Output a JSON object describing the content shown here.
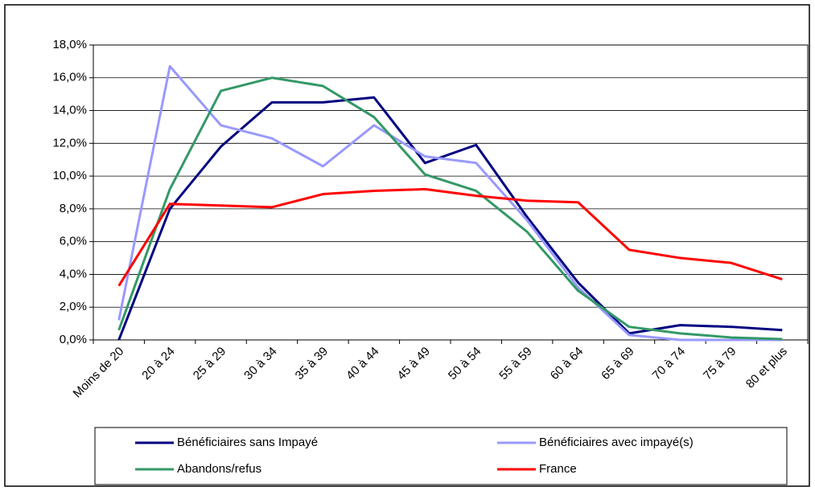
{
  "chart_data": {
    "type": "line",
    "categories": [
      "Moins de 20",
      "20 à 24",
      "25 à 29",
      "30 à 34",
      "35 à 39",
      "40 à 44",
      "45 à 49",
      "50 à 54",
      "55 à 59",
      "60 à 64",
      "65 à 69",
      "70 à 74",
      "75 à 79",
      "80 et plus"
    ],
    "series": [
      {
        "name": "Bénéficiaires sans Impayé",
        "color": "#000080",
        "values": [
          0.0,
          8.0,
          11.8,
          14.5,
          14.5,
          14.8,
          10.8,
          11.9,
          7.5,
          3.5,
          0.4,
          0.9,
          0.8,
          0.6
        ]
      },
      {
        "name": "Bénéficiaires avec impayé(s)",
        "color": "#9999ff",
        "values": [
          1.2,
          16.7,
          13.1,
          12.3,
          10.6,
          13.1,
          11.2,
          10.8,
          7.3,
          3.2,
          0.3,
          0.0,
          0.0,
          0.0
        ]
      },
      {
        "name": "Abandons/refus",
        "color": "#339966",
        "values": [
          0.6,
          9.2,
          15.2,
          16.0,
          15.5,
          13.6,
          10.1,
          9.1,
          6.6,
          3.0,
          0.8,
          0.4,
          0.15,
          0.05
        ]
      },
      {
        "name": "France",
        "color": "#ff0000",
        "values": [
          3.3,
          8.3,
          8.2,
          8.1,
          8.9,
          9.1,
          9.2,
          8.8,
          8.5,
          8.4,
          5.5,
          5.0,
          4.7,
          3.7
        ]
      }
    ],
    "ylim": [
      0,
      18
    ],
    "yticks": [
      {
        "value": 0,
        "label": "0,0%"
      },
      {
        "value": 2,
        "label": "2,0%"
      },
      {
        "value": 4,
        "label": "4,0%"
      },
      {
        "value": 6,
        "label": "6,0%"
      },
      {
        "value": 8,
        "label": "8,0%"
      },
      {
        "value": 10,
        "label": "10,0%"
      },
      {
        "value": 12,
        "label": "12,0%"
      },
      {
        "value": 14,
        "label": "14,0%"
      },
      {
        "value": 16,
        "label": "16,0%"
      },
      {
        "value": 18,
        "label": "18,0%"
      }
    ],
    "grid": true
  }
}
